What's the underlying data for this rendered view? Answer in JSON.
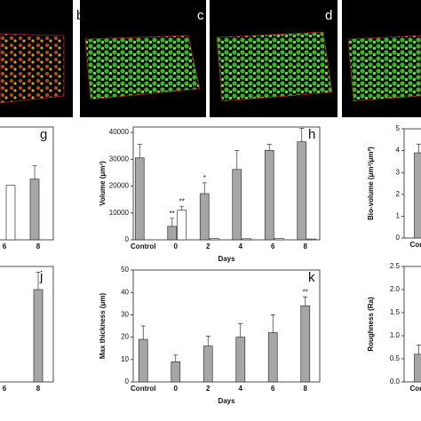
{
  "images": [
    {
      "label": "b"
    },
    {
      "label": "c"
    },
    {
      "label": "d"
    }
  ],
  "chart_data": [
    {
      "type": "bar",
      "panel": "g",
      "categories": [
        "6",
        "8"
      ],
      "series": [
        {
          "color": "#a6a6a6",
          "values": [
            null,
            22600
          ],
          "errors": [
            null,
            5000
          ]
        },
        {
          "color": "#ffffff",
          "values": [
            20300,
            null
          ]
        }
      ],
      "ylim": [
        0,
        42000
      ]
    },
    {
      "type": "bar",
      "panel": "h",
      "categories": [
        "Control",
        "0",
        "2",
        "4",
        "6",
        "8"
      ],
      "series": [
        {
          "color": "#a6a6a6",
          "values": [
            30500,
            5000,
            17200,
            26200,
            33300,
            36500
          ],
          "errors": [
            5000,
            3000,
            4000,
            7000,
            2200,
            5000
          ]
        },
        {
          "color": "#ffffff",
          "values": [
            null,
            11000,
            500,
            400,
            500,
            300
          ],
          "errors": [
            null,
            1500,
            null,
            null,
            null,
            null
          ]
        }
      ],
      "ylim": [
        0,
        42000
      ],
      "yticks": [
        0,
        10000,
        20000,
        30000,
        40000
      ],
      "ylabel": "Volume (μm³)",
      "xlabel": "Days",
      "annotations": [
        {
          "text": "**",
          "category": 1,
          "series": 0
        },
        {
          "text": "**",
          "category": 1,
          "series": 1
        },
        {
          "text": "*",
          "category": 2,
          "series": 0
        }
      ]
    },
    {
      "type": "bar",
      "categories": [
        "Control"
      ],
      "series": [
        {
          "color": "#a6a6a6",
          "values": [
            3.9
          ],
          "errors": [
            0.4
          ]
        }
      ],
      "ylim": [
        0,
        5
      ],
      "yticks": [
        0,
        1,
        2,
        3,
        4,
        5
      ],
      "ylabel": "Bio-volume (μm³/μm²)"
    },
    {
      "type": "bar",
      "panel": "j",
      "categories": [
        "6",
        "8"
      ],
      "series": [
        {
          "color": "#a6a6a6",
          "values": [
            null,
            0.8
          ],
          "errors": [
            null,
            0.15
          ]
        }
      ],
      "ylim": [
        0,
        1
      ]
    },
    {
      "type": "bar",
      "panel": "k",
      "categories": [
        "Control",
        "0",
        "2",
        "4",
        "6",
        "8"
      ],
      "series": [
        {
          "color": "#a6a6a6",
          "values": [
            19,
            9,
            16,
            20,
            22,
            34
          ],
          "errors": [
            6,
            3,
            4.5,
            6,
            8,
            4
          ]
        }
      ],
      "ylim": [
        0,
        50
      ],
      "yticks": [
        0,
        10,
        20,
        30,
        40,
        50
      ],
      "ylabel": "Max thickness (μm)",
      "xlabel": "Days",
      "annotations": [
        {
          "text": "**",
          "category": 5,
          "series": 0
        }
      ]
    },
    {
      "type": "bar",
      "categories": [
        "Control"
      ],
      "series": [
        {
          "color": "#a6a6a6",
          "values": [
            0.6
          ],
          "errors": [
            0.2
          ]
        }
      ],
      "ylim": [
        0,
        2.5
      ],
      "yticks": [
        {
          "value": 0,
          "label": "0.0"
        },
        0.5,
        {
          "value": 1,
          "label": "1.0"
        },
        1.5,
        {
          "value": 2,
          "label": "2.0"
        },
        2.5
      ],
      "ylabel": "Roughness (Ra)"
    }
  ]
}
